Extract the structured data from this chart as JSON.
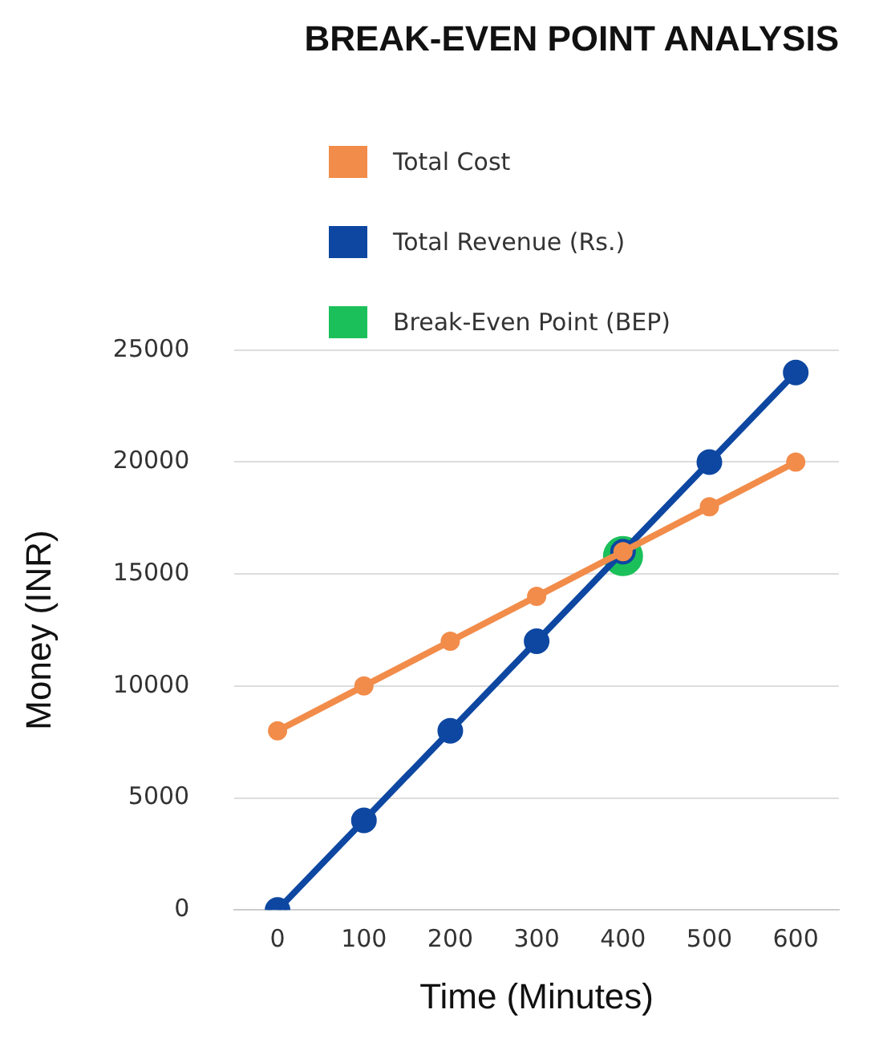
{
  "chart_data": {
    "type": "line",
    "title": "BREAK-EVEN POINT ANALYSIS",
    "xlabel": "Time (Minutes)",
    "ylabel": "Money (INR)",
    "categories": [
      "0",
      "100",
      "200",
      "300",
      "400",
      "500",
      "600"
    ],
    "series": [
      {
        "name": "Total Cost",
        "color": "#f28c4a",
        "values": [
          8000,
          10000,
          12000,
          14000,
          16000,
          18000,
          20000
        ]
      },
      {
        "name": "Total Revenue (Rs.)",
        "color": "#0d47a1",
        "values": [
          0,
          4000,
          8000,
          12000,
          16000,
          20000,
          24000
        ]
      },
      {
        "name": "Break-Even Point (BEP)",
        "type": "scatter",
        "color": "#1cc05a",
        "x": [
          "400"
        ],
        "values": [
          15800
        ]
      }
    ],
    "ylim": [
      0,
      25000
    ],
    "yticks": [
      0,
      5000,
      10000,
      15000,
      20000,
      25000
    ],
    "grid": "y",
    "legend": "top",
    "marker": "circle"
  }
}
